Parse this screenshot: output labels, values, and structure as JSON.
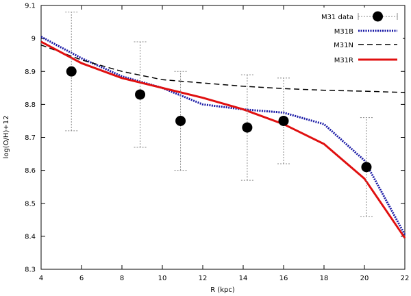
{
  "chart_data": {
    "type": "line",
    "title": "",
    "xlabel": "R (kpc)",
    "ylabel": "log(O/H)+12",
    "xlim": [
      4,
      22
    ],
    "ylim": [
      8.3,
      9.1
    ],
    "x_ticks": [
      4,
      6,
      8,
      10,
      12,
      14,
      16,
      18,
      20,
      22
    ],
    "y_ticks": [
      8.3,
      8.4,
      8.5,
      8.6,
      8.7,
      8.8,
      8.9,
      9.0,
      9.1
    ],
    "x_tick_labels": [
      "4",
      "6",
      "8",
      "10",
      "12",
      "14",
      "16",
      "18",
      "20",
      "22"
    ],
    "y_tick_labels": [
      "8.3",
      "8.4",
      "8.5",
      "8.6",
      "8.7",
      "8.8",
      "8.9",
      "9",
      "9.1"
    ],
    "legend_position": "top-right",
    "points": {
      "name": "M31 data",
      "color": "#000000",
      "x": [
        5.5,
        8.9,
        10.9,
        14.2,
        16.0,
        20.1
      ],
      "y": [
        8.9,
        8.83,
        8.75,
        8.73,
        8.75,
        8.61
      ],
      "err_low": [
        8.72,
        8.67,
        8.6,
        8.57,
        8.62,
        8.46
      ],
      "err_high": [
        9.08,
        8.99,
        8.9,
        8.89,
        8.88,
        8.76
      ]
    },
    "series": [
      {
        "name": "M31B",
        "color": "#1a1aa6",
        "style": "dotted",
        "x": [
          4,
          6,
          8,
          10,
          12,
          14,
          16,
          18,
          20,
          22
        ],
        "y": [
          9.005,
          8.94,
          8.885,
          8.85,
          8.8,
          8.785,
          8.775,
          8.74,
          8.63,
          8.405
        ]
      },
      {
        "name": "M31N",
        "color": "#000000",
        "style": "dashed",
        "x": [
          4,
          6,
          8,
          10,
          12,
          14,
          16,
          18,
          20,
          22
        ],
        "y": [
          8.98,
          8.935,
          8.9,
          8.875,
          8.865,
          8.855,
          8.848,
          8.843,
          8.84,
          8.836
        ]
      },
      {
        "name": "M31R",
        "color": "#e01010",
        "style": "solid",
        "x": [
          4,
          6,
          8,
          10,
          12,
          14,
          16,
          18,
          20,
          22
        ],
        "y": [
          8.99,
          8.925,
          8.88,
          8.85,
          8.82,
          8.785,
          8.74,
          8.68,
          8.575,
          8.395
        ]
      }
    ]
  }
}
